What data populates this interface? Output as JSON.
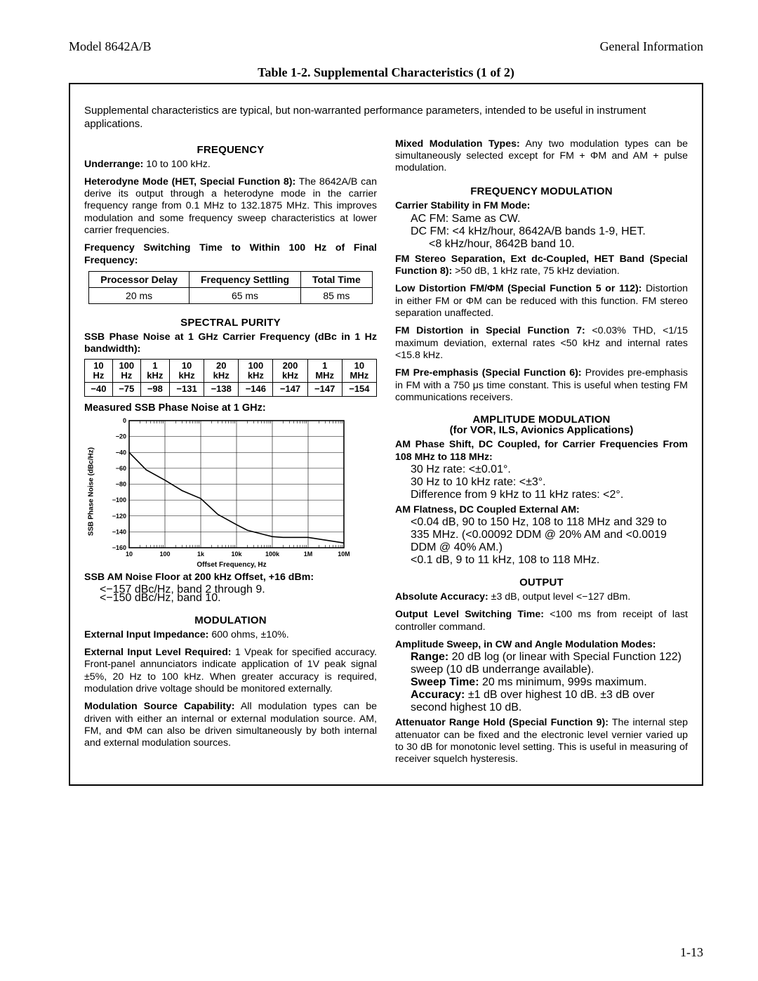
{
  "header": {
    "left": "Model 8642A/B",
    "right": "General Information"
  },
  "table_title": "Table 1-2.  Supplemental Characteristics (1 of 2)",
  "intro": "Supplemental characteristics are typical, but non-warranted performance parameters, intended to be useful in instrument applications.",
  "left_col": {
    "frequency": {
      "head": "FREQUENCY",
      "underrange_label": "Underrange:",
      "underrange_text": " 10 to 100 kHz.",
      "het_label": "Heterodyne Mode (HET, Special Function 8):",
      "het_text": " The 8642A/B can derive its output through a heterodyne mode in the carrier frequency range from 0.1 MHz to 132.1875 MHz. This improves modulation and some frequency sweep characteristics at lower carrier frequencies.",
      "switch_label": "Frequency Switching Time to Within 100 Hz of Final Frequency:",
      "table": {
        "headers": [
          "Processor Delay",
          "Frequency Settling",
          "Total Time"
        ],
        "row": [
          "20 ms",
          "65 ms",
          "85 ms"
        ]
      }
    },
    "spectral": {
      "head": "SPECTRAL PURITY",
      "ssb_label": "SSB Phase Noise at 1 GHz Carrier Frequency (dBc in 1 Hz bandwidth):",
      "pn_headers": [
        [
          "10",
          "Hz"
        ],
        [
          "100",
          "Hz"
        ],
        [
          "1",
          "kHz"
        ],
        [
          "10",
          "kHz"
        ],
        [
          "20",
          "kHz"
        ],
        [
          "100",
          "kHz"
        ],
        [
          "200",
          "kHz"
        ],
        [
          "1",
          "MHz"
        ],
        [
          "10",
          "MHz"
        ]
      ],
      "pn_values": [
        "−40",
        "−75",
        "−98",
        "−131",
        "−138",
        "−146",
        "−147",
        "−147",
        "−154"
      ],
      "measured_label": "Measured SSB Phase Noise at 1 GHz:",
      "chart": {
        "type": "line",
        "background_color": "#ffffff",
        "grid_color": "#000000",
        "line_color": "#000000",
        "line_width": 1.6,
        "ylim": [
          -160,
          0
        ],
        "ytick_step": 20,
        "yticks": [
          "0",
          "−20",
          "−40",
          "−60",
          "−80",
          "−100",
          "−120",
          "−140",
          "−160"
        ],
        "xscale": "log",
        "xticks": [
          "10",
          "100",
          "1k",
          "10k",
          "100k",
          "1M",
          "10M"
        ],
        "xlabel": "Offset Frequency, Hz",
        "ylabel": "SSB Phase Noise (dBc/Hz)",
        "series": [
          {
            "x": 10,
            "y": -40
          },
          {
            "x": 30,
            "y": -62
          },
          {
            "x": 100,
            "y": -75
          },
          {
            "x": 300,
            "y": -88
          },
          {
            "x": 1000,
            "y": -98
          },
          {
            "x": 3000,
            "y": -118
          },
          {
            "x": 10000,
            "y": -131
          },
          {
            "x": 20000,
            "y": -138
          },
          {
            "x": 100000,
            "y": -146
          },
          {
            "x": 200000,
            "y": -147
          },
          {
            "x": 1000000,
            "y": -147
          },
          {
            "x": 10000000,
            "y": -154
          }
        ]
      },
      "am_noise_label": "SSB AM Noise Floor at 200 kHz Offset, +16 dBm:",
      "am_noise_l1": "<−157 dBc/Hz, band 2 through 9.",
      "am_noise_l2": "<−150 dBc/Hz, band 10."
    },
    "modulation": {
      "head": "MODULATION",
      "imp_label": "External Input Impedance:",
      "imp_text": " 600 ohms, ±10%.",
      "lvl_label": "External Input Level Required:",
      "lvl_text": " 1 Vpeak for specified accuracy. Front-panel annunciators indicate application of 1V peak signal ±5%, 20 Hz to 100 kHz. When greater accuracy is required, modulation drive voltage should be monitored externally.",
      "src_label": "Modulation Source Capability:",
      "src_text": " All modulation types can be driven with either an internal or external modulation source. AM, FM, and ΦM can also be driven simultaneously by both internal and external modulation sources."
    }
  },
  "right_col": {
    "mixed_label": "Mixed Modulation Types:",
    "mixed_text": " Any two modulation types can be simultaneously selected except for FM + ΦM and AM + pulse modulation.",
    "fm": {
      "head": "FREQUENCY MODULATION",
      "stab_label": "Carrier Stability in FM Mode:",
      "stab_l1": "AC FM: Same as CW.",
      "stab_l2": "DC FM: <4 kHz/hour, 8642A/B bands 1-9, HET.",
      "stab_l3": "<8 kHz/hour, 8642B band 10.",
      "sep_label": "FM Stereo Separation, Ext dc-Coupled, HET Band (Special Function 8):",
      "sep_text": " >50 dB, 1 kHz rate, 75 kHz deviation.",
      "low_label": "Low Distortion FM/ΦM (Special Function 5 or 112):",
      "low_text": " Distortion in either FM or ΦM can be reduced with this function. FM stereo separation unaffected.",
      "dist_label": "FM Distortion in Special Function 7:",
      "dist_text": " <0.03% THD, <1/15 maximum deviation, external rates <50 kHz and internal rates <15.8 kHz.",
      "pre_label": "FM Pre-emphasis (Special Function 6):",
      "pre_text": " Provides pre-emphasis in FM with a 750 μs time constant. This is useful when testing FM communications receivers."
    },
    "am": {
      "head": "AMPLITUDE MODULATION",
      "subhead": "(for VOR, ILS, Avionics Applications)",
      "phase_label": "AM Phase Shift, DC Coupled, for Carrier Frequencies From 108 MHz to 118 MHz:",
      "phase_l1": "30 Hz rate: <±0.01°.",
      "phase_l2": "30 Hz to 10 kHz rate: <±3°.",
      "phase_l3": "Difference from 9 kHz to 11 kHz rates: <2°.",
      "flat_label": "AM Flatness, DC Coupled External AM:",
      "flat_l1": "<0.04 dB, 90 to 150 Hz, 108 to 118 MHz and 329 to 335 MHz. (<0.00092 DDM @ 20% AM and <0.0019 DDM @ 40% AM.)",
      "flat_l2": "<0.1 dB, 9 to 11 kHz, 108 to 118 MHz."
    },
    "output": {
      "head": "OUTPUT",
      "acc_label": "Absolute Accuracy:",
      "acc_text": " ±3 dB, output level <−127 dBm.",
      "lvl_label": "Output Level Switching Time:",
      "lvl_text": " <100 ms from receipt of last controller command.",
      "sweep_label": "Amplitude Sweep, in CW and Angle Modulation Modes:",
      "sweep_range_label": "Range:",
      "sweep_range_text": " 20 dB log (or linear with Special Function 122) sweep (10 dB underrange available).",
      "sweep_time_label": "Sweep Time:",
      "sweep_time_text": " 20 ms minimum, 999s maximum.",
      "sweep_acc_label": "Accuracy:",
      "sweep_acc_text": " ±1 dB over highest 10 dB. ±3 dB over second highest 10 dB.",
      "atten_label": "Attenuator Range Hold (Special Function 9):",
      "atten_text": " The internal step attenuator can be fixed and the electronic level vernier varied up to 30 dB for monotonic level setting. This is useful in measuring of receiver squelch hysteresis."
    }
  },
  "footer_page": "1-13"
}
